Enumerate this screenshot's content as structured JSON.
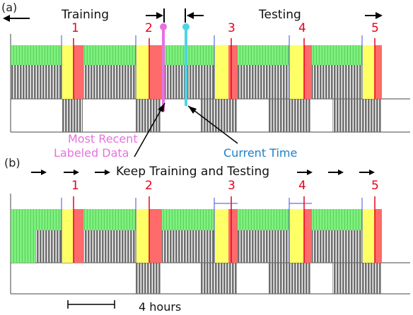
{
  "panel_a": {
    "label": "(a)",
    "training_label": "Training",
    "testing_label": "Testing",
    "events": [
      "1",
      "2",
      "3",
      "4",
      "5"
    ]
  },
  "panel_b": {
    "label": "(b)",
    "caption": "Keep Training and Testing",
    "events": [
      "1",
      "2",
      "3",
      "4",
      "5"
    ]
  },
  "annotations": {
    "recent_labeled": [
      "Most Recent",
      "Labeled Data"
    ],
    "current_time": "Current Time"
  },
  "scale_bar_label": "4 hours",
  "colors": {
    "green": "#7ef27e",
    "yellow": "#ffff66",
    "red": "#ff6a6a",
    "gray": "#6e6e6e",
    "event_text": "#e8001c",
    "pink": "#e870e0",
    "cyan": "#4fd4e6",
    "current_time_text": "#1e7fc8"
  }
}
